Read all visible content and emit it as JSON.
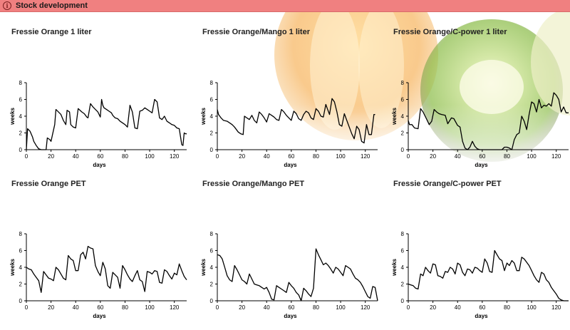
{
  "window": {
    "title": "Stock development",
    "info_icon": "info-icon",
    "accent_color": "#f08080"
  },
  "background": {
    "description_colors": [
      "#f6a830",
      "#8cc63f",
      "#f0e8b0"
    ]
  },
  "charts": [
    {
      "title": "Fressie Orange 1 liter",
      "chart_data": {
        "type": "line",
        "xlabel": "days",
        "ylabel": "weeks",
        "xlim": [
          0,
          130
        ],
        "ylim": [
          0,
          8
        ],
        "xticks": [
          0,
          20,
          40,
          60,
          80,
          100,
          120
        ],
        "yticks": [
          0,
          2,
          4,
          6,
          8
        ],
        "x": [
          0,
          1,
          3,
          5,
          6,
          8,
          10,
          12,
          16,
          17,
          19,
          20,
          23,
          24,
          26,
          28,
          30,
          32,
          33,
          35,
          36,
          38,
          40,
          42,
          45,
          47,
          49,
          50,
          52,
          54,
          56,
          58,
          60,
          61,
          62,
          63,
          65,
          67,
          69,
          70,
          72,
          74,
          76,
          78,
          80,
          82,
          84,
          86,
          88,
          90,
          92,
          94,
          96,
          98,
          100,
          102,
          104,
          106,
          108,
          110,
          112,
          114,
          116,
          118,
          120,
          122,
          124,
          126,
          127,
          128,
          129,
          130
        ],
        "y": [
          0,
          2.5,
          2.2,
          1.5,
          1.0,
          0.5,
          0.1,
          0,
          0,
          1.4,
          1.2,
          1.0,
          3.0,
          4.8,
          4.5,
          4.2,
          3.5,
          3.0,
          4.7,
          4.5,
          3.0,
          2.7,
          2.6,
          4.9,
          4.5,
          4.3,
          3.9,
          3.8,
          5.5,
          5.1,
          4.8,
          4.5,
          3.9,
          6.0,
          5.3,
          5.0,
          4.8,
          4.6,
          4.4,
          4.1,
          3.8,
          3.7,
          3.4,
          3.2,
          3.0,
          2.7,
          5.3,
          4.5,
          2.6,
          2.5,
          4.6,
          4.7,
          5.0,
          4.8,
          4.6,
          4.4,
          6.0,
          5.7,
          3.8,
          3.6,
          4.0,
          3.4,
          3.2,
          3.0,
          2.9,
          2.6,
          2.5,
          0.6,
          0.5,
          2.0,
          1.9,
          1.9
        ]
      }
    },
    {
      "title": "Fressie Orange/Mango 1 liter",
      "chart_data": {
        "type": "line",
        "xlabel": "days",
        "ylabel": "weeks",
        "xlim": [
          0,
          130
        ],
        "ylim": [
          0,
          8
        ],
        "xticks": [
          0,
          20,
          40,
          60,
          80,
          100,
          120
        ],
        "yticks": [
          0,
          2,
          4,
          6,
          8
        ],
        "x": [
          0,
          1,
          3,
          5,
          8,
          10,
          12,
          14,
          17,
          19,
          21,
          22,
          24,
          26,
          28,
          30,
          32,
          34,
          36,
          38,
          40,
          42,
          44,
          46,
          48,
          50,
          52,
          54,
          56,
          58,
          60,
          62,
          64,
          66,
          68,
          70,
          72,
          74,
          76,
          78,
          80,
          82,
          84,
          86,
          88,
          89,
          91,
          93,
          95,
          97,
          99,
          101,
          103,
          105,
          107,
          109,
          111,
          113,
          115,
          117,
          119,
          121,
          123,
          125,
          127,
          128
        ],
        "y": [
          4.8,
          4.2,
          3.8,
          3.5,
          3.4,
          3.2,
          3.0,
          2.7,
          2.1,
          1.9,
          1.8,
          4.0,
          3.8,
          3.6,
          4.1,
          3.5,
          3.2,
          4.5,
          4.2,
          3.8,
          3.3,
          4.3,
          4.1,
          3.9,
          3.6,
          3.5,
          4.8,
          4.5,
          4.1,
          3.8,
          3.5,
          4.6,
          4.3,
          3.7,
          3.5,
          4.2,
          4.6,
          4.4,
          3.8,
          3.6,
          4.9,
          4.6,
          4.0,
          3.9,
          5.4,
          5.0,
          4.2,
          6.1,
          5.7,
          4.5,
          3.0,
          2.8,
          4.3,
          3.5,
          2.7,
          1.9,
          1.3,
          2.8,
          2.4,
          1.0,
          0.8,
          3.0,
          1.8,
          1.8,
          4.2,
          4.2
        ]
      }
    },
    {
      "title": "Fressie Orange/C-power 1 liter",
      "chart_data": {
        "type": "line",
        "xlabel": "days",
        "ylabel": "weeks",
        "xlim": [
          0,
          130
        ],
        "ylim": [
          0,
          8
        ],
        "xticks": [
          0,
          20,
          40,
          60,
          80,
          100,
          120
        ],
        "yticks": [
          0,
          2,
          4,
          6,
          8
        ],
        "x": [
          0,
          1,
          3,
          5,
          8,
          10,
          12,
          13,
          15,
          17,
          19,
          21,
          23,
          25,
          27,
          30,
          32,
          35,
          37,
          40,
          42,
          44,
          46,
          48,
          50,
          52,
          54,
          56,
          58,
          60,
          62,
          64,
          66,
          68,
          70,
          72,
          74,
          76,
          78,
          80,
          82,
          84,
          86,
          88,
          90,
          92,
          94,
          96,
          98,
          100,
          102,
          104,
          106,
          108,
          110,
          112,
          114,
          116,
          118,
          120,
          122,
          124,
          126,
          128,
          130
        ],
        "y": [
          3.5,
          3.0,
          3.0,
          2.6,
          2.5,
          4.9,
          4.5,
          4.2,
          3.6,
          3.0,
          3.4,
          4.8,
          4.5,
          4.3,
          4.2,
          4.1,
          3.1,
          3.8,
          3.7,
          2.9,
          2.7,
          1.0,
          0.2,
          0,
          0.3,
          1.0,
          0.4,
          0.1,
          0,
          0,
          0,
          0,
          0,
          0,
          0,
          0,
          0,
          0,
          0.3,
          0.3,
          0.2,
          0,
          1.2,
          1.8,
          2.0,
          4.0,
          3.4,
          2.4,
          4.2,
          5.7,
          5.5,
          4.5,
          6.0,
          5.0,
          5.3,
          5.2,
          5.5,
          5.2,
          6.8,
          6.5,
          6.0,
          4.5,
          5.1,
          4.4,
          4.4
        ]
      }
    },
    {
      "title": "Fressie Orange PET",
      "chart_data": {
        "type": "line",
        "xlabel": "days",
        "ylabel": "weeks",
        "xlim": [
          0,
          130
        ],
        "ylim": [
          0,
          8
        ],
        "xticks": [
          0,
          20,
          40,
          60,
          80,
          100,
          120
        ],
        "yticks": [
          0,
          2,
          4,
          6,
          8
        ],
        "x": [
          0,
          2,
          4,
          6,
          8,
          10,
          12,
          14,
          16,
          18,
          20,
          22,
          24,
          26,
          28,
          30,
          32,
          34,
          36,
          38,
          40,
          42,
          44,
          46,
          48,
          50,
          52,
          54,
          56,
          58,
          60,
          62,
          64,
          66,
          68,
          70,
          72,
          74,
          76,
          78,
          80,
          82,
          84,
          86,
          88,
          90,
          92,
          94,
          96,
          98,
          100,
          102,
          104,
          106,
          108,
          110,
          112,
          114,
          116,
          118,
          120,
          122,
          124,
          126,
          128,
          130
        ],
        "y": [
          4.0,
          3.8,
          3.7,
          3.2,
          2.8,
          2.4,
          1.0,
          3.5,
          3.1,
          2.7,
          2.6,
          2.4,
          4.0,
          3.7,
          3.2,
          2.7,
          2.5,
          5.4,
          5.0,
          4.8,
          3.6,
          3.6,
          5.5,
          5.8,
          5.0,
          6.5,
          6.3,
          6.2,
          4.2,
          3.5,
          3.0,
          4.6,
          3.8,
          1.8,
          1.5,
          3.4,
          3.1,
          2.8,
          1.5,
          4.2,
          3.7,
          3.1,
          2.6,
          2.3,
          3.0,
          3.6,
          2.5,
          2.3,
          1.1,
          3.5,
          3.4,
          3.2,
          3.6,
          3.5,
          2.2,
          2.1,
          3.7,
          3.5,
          3.0,
          2.6,
          3.3,
          3.1,
          4.4,
          3.6,
          2.9,
          2.5
        ]
      }
    },
    {
      "title": "Fressie Orange/Mango PET",
      "chart_data": {
        "type": "line",
        "xlabel": "days",
        "ylabel": "weeks",
        "xlim": [
          0,
          130
        ],
        "ylim": [
          0,
          8
        ],
        "xticks": [
          0,
          20,
          40,
          60,
          80,
          100,
          120
        ],
        "yticks": [
          0,
          2,
          4,
          6,
          8
        ],
        "x": [
          0,
          2,
          4,
          6,
          8,
          10,
          12,
          14,
          16,
          18,
          20,
          22,
          24,
          26,
          28,
          30,
          32,
          34,
          36,
          38,
          40,
          42,
          44,
          46,
          48,
          50,
          52,
          54,
          56,
          58,
          60,
          62,
          64,
          66,
          68,
          70,
          72,
          74,
          76,
          78,
          80,
          82,
          84,
          86,
          88,
          90,
          92,
          94,
          96,
          98,
          100,
          102,
          104,
          106,
          108,
          110,
          112,
          114,
          116,
          118,
          120,
          122,
          124,
          126,
          128,
          130
        ],
        "y": [
          5.5,
          5.4,
          5.0,
          4.0,
          3.0,
          2.5,
          2.3,
          4.2,
          3.7,
          3.1,
          2.5,
          2.3,
          2.0,
          3.2,
          2.6,
          2.0,
          1.9,
          1.8,
          1.6,
          1.4,
          1.6,
          1.0,
          0.2,
          0.1,
          1.8,
          1.6,
          1.4,
          1.2,
          1.0,
          2.2,
          1.8,
          1.5,
          1.0,
          0.7,
          0,
          1.5,
          1.2,
          0.8,
          0.5,
          1.5,
          6.2,
          5.5,
          4.9,
          4.3,
          4.5,
          4.2,
          3.8,
          3.3,
          4.0,
          3.8,
          3.4,
          3.0,
          4.2,
          4.0,
          3.8,
          3.2,
          2.7,
          2.5,
          2.2,
          1.7,
          1.1,
          0.5,
          0.3,
          1.7,
          1.6,
          0
        ]
      }
    },
    {
      "title": "Fressie Orange/C-power PET",
      "chart_data": {
        "type": "line",
        "xlabel": "days",
        "ylabel": "weeks",
        "xlim": [
          0,
          130
        ],
        "ylim": [
          0,
          8
        ],
        "xticks": [
          0,
          20,
          40,
          60,
          80,
          100,
          120
        ],
        "yticks": [
          0,
          2,
          4,
          6,
          8
        ],
        "x": [
          0,
          2,
          4,
          6,
          8,
          10,
          12,
          14,
          16,
          18,
          20,
          22,
          24,
          26,
          28,
          30,
          32,
          34,
          36,
          38,
          40,
          42,
          44,
          46,
          48,
          50,
          52,
          54,
          56,
          58,
          60,
          62,
          64,
          66,
          68,
          70,
          72,
          74,
          76,
          78,
          80,
          82,
          84,
          86,
          88,
          90,
          92,
          94,
          96,
          98,
          100,
          102,
          104,
          106,
          108,
          110,
          112,
          114,
          116,
          118,
          120,
          122,
          124,
          126,
          128,
          130
        ],
        "y": [
          2.0,
          1.9,
          1.8,
          1.5,
          1.4,
          3.2,
          3.0,
          4.0,
          3.6,
          3.3,
          4.4,
          4.3,
          3.0,
          2.9,
          2.7,
          3.5,
          3.4,
          4.0,
          3.8,
          3.2,
          4.5,
          4.3,
          3.4,
          3.0,
          3.8,
          3.7,
          3.3,
          4.0,
          3.9,
          3.6,
          3.4,
          5.0,
          4.5,
          3.5,
          3.4,
          6.0,
          5.5,
          5.0,
          4.8,
          3.6,
          4.5,
          4.2,
          4.8,
          4.5,
          3.6,
          3.6,
          5.2,
          5.0,
          4.6,
          4.2,
          3.6,
          3.0,
          2.5,
          2.2,
          3.4,
          3.2,
          2.5,
          2.2,
          1.6,
          1.2,
          0.8,
          0.3,
          0.1,
          0,
          0,
          0
        ]
      }
    }
  ]
}
